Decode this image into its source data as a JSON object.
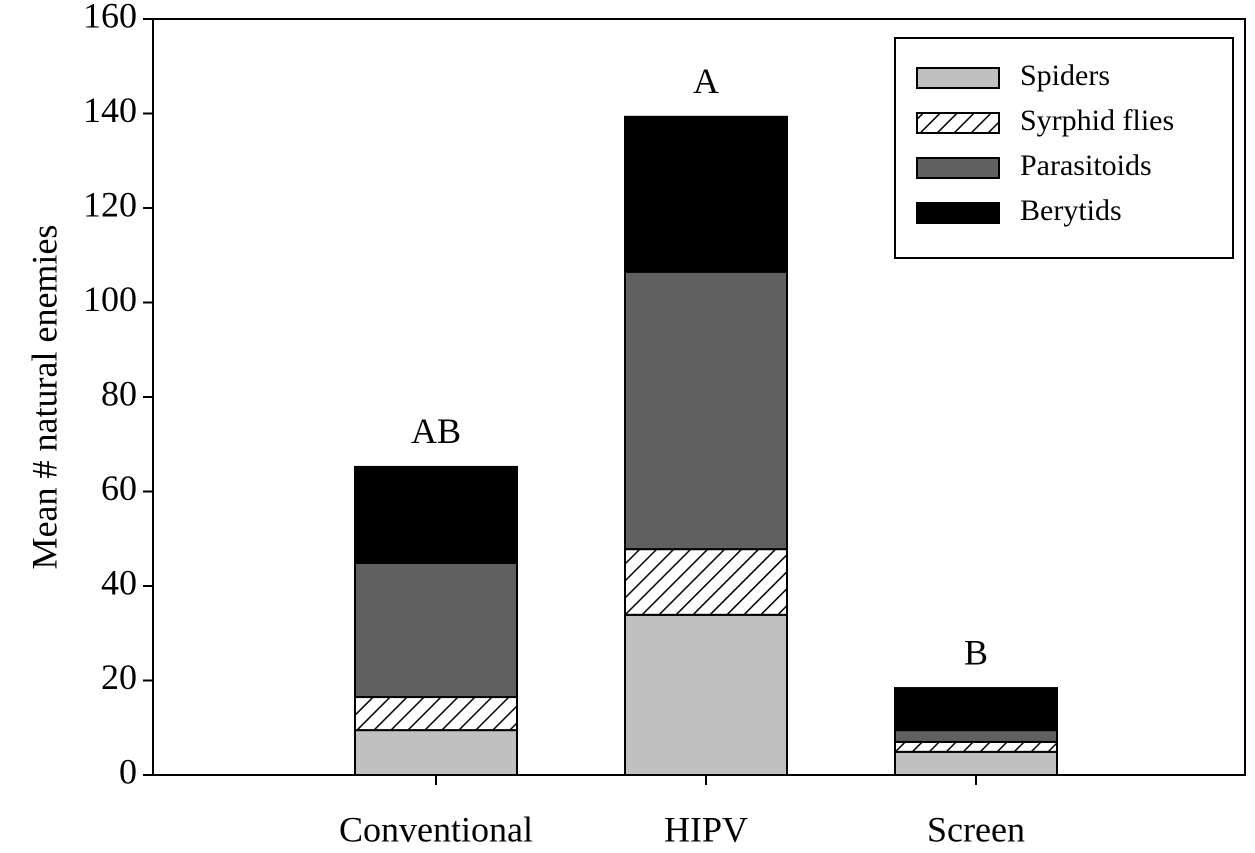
{
  "chart_data": {
    "type": "stacked_bar",
    "y_label": "Mean # natural enemies",
    "categories": [
      "Conventional",
      "HIPV",
      "Screen"
    ],
    "series": [
      {
        "name": "Spiders",
        "color": "#c0c0c0",
        "values": [
          9.5,
          33.9,
          4.9
        ]
      },
      {
        "name": "Syrphid flies",
        "color": "#000000",
        "pattern": "hatch",
        "values": [
          7.0,
          13.9,
          2.1
        ]
      },
      {
        "name": "Parasitoids",
        "color": "#606060",
        "values": [
          28.4,
          58.7,
          2.5
        ]
      },
      {
        "name": "Berytids",
        "color": "#000000",
        "values": [
          20.3,
          32.8,
          8.9
        ]
      }
    ],
    "annotations": [
      "AB",
      "A",
      "B"
    ],
    "ylim": [
      0,
      160
    ],
    "yticks": [
      0,
      20,
      40,
      60,
      80,
      100,
      120,
      140,
      160
    ],
    "grid": false,
    "legend": "upper right"
  }
}
